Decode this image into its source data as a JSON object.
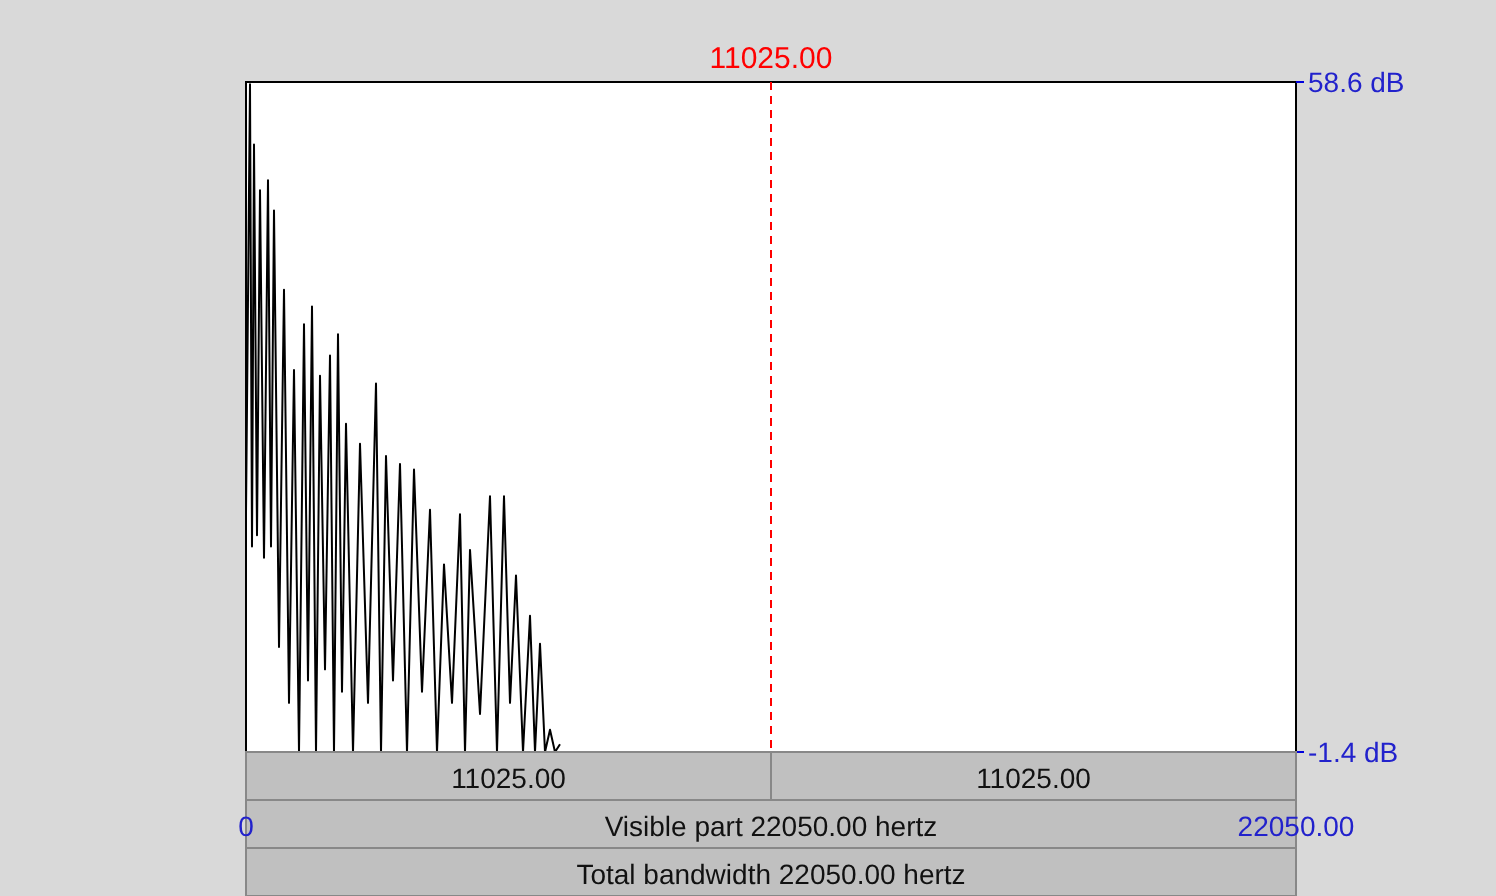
{
  "chart_data": {
    "type": "line",
    "xlim": [
      0,
      22050
    ],
    "ylim": [
      -1.4,
      58.6
    ],
    "xticks": [
      {
        "value": 0,
        "label": "0"
      },
      {
        "value": 22050,
        "label": "22050.00"
      }
    ],
    "yticks": [
      {
        "value": 58.6,
        "label": "58.6 dB"
      },
      {
        "value": -1.4,
        "label": "-1.4 dB"
      }
    ],
    "series": [
      {
        "color": "#000000",
        "x": [
          0,
          84,
          126,
          168,
          231,
          294,
          378,
          462,
          525,
          588,
          693,
          798,
          903,
          1008,
          1113,
          1218,
          1302,
          1386,
          1470,
          1554,
          1659,
          1764,
          1848,
          1932,
          2016,
          2100,
          2247,
          2394,
          2562,
          2730,
          2835,
          2940,
          3087,
          3234,
          3381,
          3528,
          3696,
          3864,
          4011,
          4158,
          4326,
          4494,
          4599,
          4704,
          4914,
          5124,
          5271,
          5418,
          5544,
          5670,
          5817,
          5964,
          6069,
          6174,
          6279,
          6384,
          6489,
          6594
        ],
        "values": [
          20,
          58.4,
          17,
          53,
          18,
          48.9,
          16,
          49.8,
          17,
          47.1,
          8,
          40,
          3,
          32.8,
          -1.4,
          36.9,
          5,
          38.5,
          -1.4,
          32.3,
          6,
          34.1,
          -1.4,
          36,
          4,
          28,
          -1.4,
          26.2,
          3,
          31.6,
          -1.4,
          25.1,
          5,
          24.4,
          -1.4,
          23.9,
          4,
          20.3,
          -1.4,
          15.4,
          3,
          19.9,
          -1.4,
          16.7,
          2,
          21.5,
          -1.4,
          21.5,
          3,
          14.4,
          -1.4,
          10.8,
          -1.4,
          8.3,
          -1.4,
          0.6,
          -1.4,
          -0.7
        ]
      }
    ],
    "ref_lines": [
      {
        "axis": "x",
        "value": 11025,
        "label": "11025.00",
        "color": "#ff0000",
        "line_style": "dashed"
      }
    ],
    "annotations": [
      "11025.00",
      "11025.00",
      "Visible part 22050.00 hertz",
      "Total bandwidth 22050.00 hertz"
    ],
    "grid": false
  }
}
